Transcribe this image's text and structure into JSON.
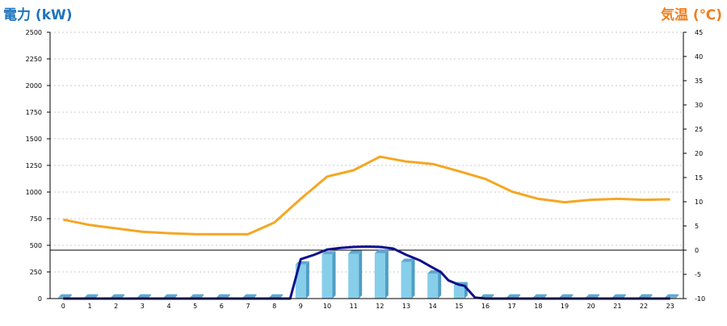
{
  "chart_data": {
    "type": "bar",
    "title_left": "電力 (kW)",
    "title_right": "気温 (℃)",
    "categories": [
      "0",
      "1",
      "2",
      "3",
      "4",
      "5",
      "6",
      "7",
      "8",
      "9",
      "10",
      "11",
      "12",
      "13",
      "14",
      "15",
      "16",
      "17",
      "18",
      "19",
      "20",
      "21",
      "22",
      "23"
    ],
    "left_axis": {
      "min": 0,
      "max": 2500,
      "ticks": [
        0,
        250,
        500,
        750,
        1000,
        1250,
        1500,
        1750,
        2000,
        2250,
        2500
      ]
    },
    "right_axis": {
      "min": -10,
      "max": 45,
      "ticks": [
        -10,
        -5,
        0,
        5,
        10,
        15,
        20,
        25,
        30,
        35,
        40,
        45
      ]
    },
    "grid": true,
    "series": [
      {
        "kind": "bar",
        "axis": "left",
        "color": "#87ceeb",
        "values": [
          10,
          10,
          10,
          10,
          10,
          10,
          10,
          10,
          10,
          320,
          415,
          420,
          425,
          345,
          235,
          125,
          10,
          10,
          10,
          10,
          10,
          10,
          10,
          10
        ]
      },
      {
        "kind": "line",
        "axis": "left",
        "color": "#10108c",
        "x": [
          0,
          1,
          2,
          3,
          4,
          5,
          6,
          7,
          8,
          8.6,
          9,
          9.5,
          10,
          10.5,
          11,
          11.5,
          12,
          12.5,
          13,
          13.5,
          14,
          14.3,
          14.6,
          15,
          15.2,
          15.6,
          16,
          17,
          18,
          19,
          20,
          21,
          22,
          23
        ],
        "values": [
          0,
          0,
          0,
          0,
          0,
          0,
          0,
          0,
          0,
          0,
          370,
          410,
          460,
          475,
          485,
          488,
          485,
          470,
          410,
          360,
          290,
          250,
          170,
          130,
          120,
          10,
          0,
          0,
          0,
          0,
          0,
          0,
          0,
          0
        ]
      },
      {
        "kind": "line",
        "axis": "right",
        "color": "#f5a623",
        "x": [
          0,
          1,
          2,
          3,
          4,
          5,
          6,
          7,
          8,
          9,
          10,
          11,
          12,
          13,
          14,
          15,
          16,
          17,
          18,
          19,
          20,
          21,
          22,
          23
        ],
        "values": [
          6.3,
          5.2,
          4.5,
          3.8,
          3.5,
          3.3,
          3.3,
          3.3,
          5.7,
          10.6,
          15.2,
          16.5,
          19.3,
          18.3,
          17.8,
          16.3,
          14.7,
          12.1,
          10.6,
          9.9,
          10.4,
          10.6,
          10.4,
          10.5
        ]
      }
    ],
    "reference_line": {
      "axis": "left",
      "value": 455,
      "color": "#000000"
    }
  }
}
